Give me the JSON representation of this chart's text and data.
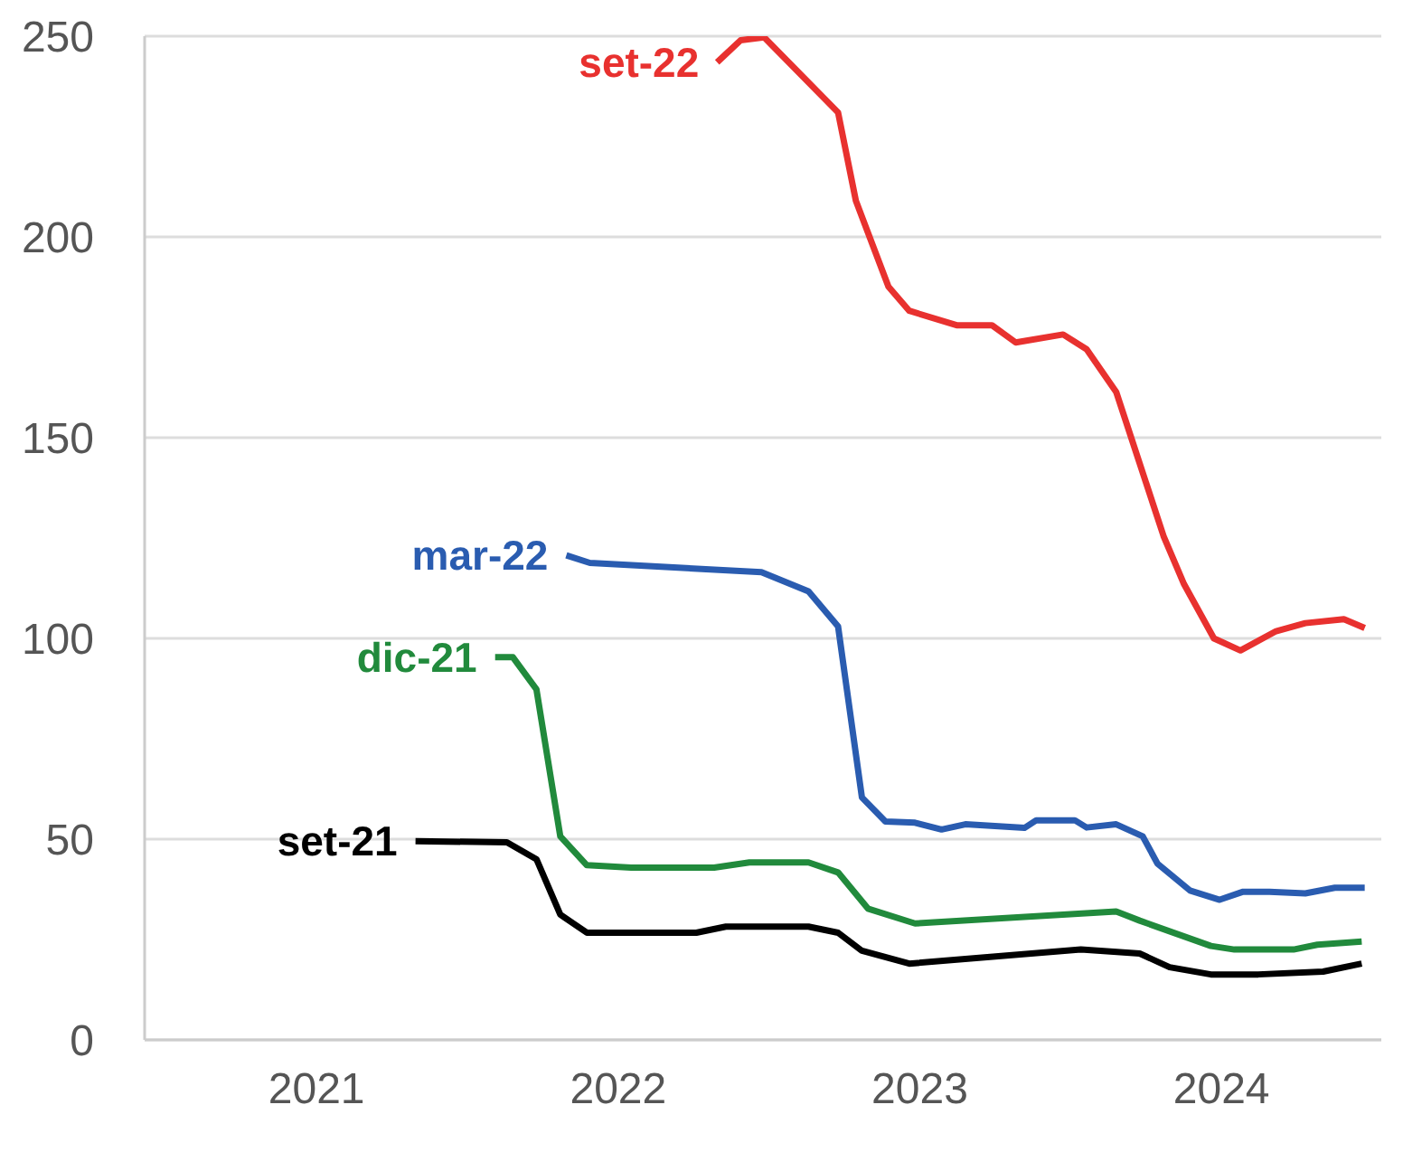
{
  "chart_data": {
    "type": "line",
    "xlim": [
      2020.43,
      2024.53
    ],
    "xticks": [
      2021,
      2022,
      2023,
      2024
    ],
    "ylim": [
      0,
      250
    ],
    "yticks": [
      0,
      50,
      100,
      150,
      200,
      250
    ],
    "grid": "y",
    "line_style": "solid",
    "series": [
      {
        "name": "set-21",
        "color": "#000000",
        "x": [
          2021.328,
          2021.631,
          2021.729,
          2021.808,
          2021.896,
          2022.259,
          2022.357,
          2022.631,
          2022.729,
          2022.808,
          2022.965,
          2023.534,
          2023.729,
          2023.828,
          2023.965,
          2024.122,
          2024.337,
          2024.465
        ],
        "values": [
          49.5,
          49.2,
          45,
          31.2,
          26.7,
          26.7,
          28.2,
          28.2,
          26.7,
          22.2,
          19,
          22.5,
          21.5,
          18.1,
          16.3,
          16.3,
          17,
          19
        ]
      },
      {
        "name": "dic-21",
        "color": "#218a3c",
        "x": [
          2021.592,
          2021.651,
          2021.729,
          2021.808,
          2021.896,
          2022.043,
          2022.318,
          2022.435,
          2022.631,
          2022.729,
          2022.828,
          2022.984,
          2023.651,
          2023.729,
          2023.965,
          2024.043,
          2024.239,
          2024.318,
          2024.465
        ],
        "values": [
          95.3,
          95.3,
          87.3,
          50.7,
          43.5,
          42.9,
          42.9,
          44.2,
          44.2,
          41.7,
          32.7,
          29,
          32,
          29.7,
          23.4,
          22.5,
          22.5,
          23.7,
          24.5
        ]
      },
      {
        "name": "mar-22",
        "color": "#2a5cb0",
        "x": [
          2021.828,
          2021.906,
          2022.475,
          2022.631,
          2022.729,
          2022.808,
          2022.886,
          2022.984,
          2023.072,
          2023.151,
          2023.347,
          2023.386,
          2023.514,
          2023.553,
          2023.651,
          2023.739,
          2023.788,
          2023.896,
          2023.994,
          2024.072,
          2024.159,
          2024.278,
          2024.376,
          2024.475
        ],
        "values": [
          120.7,
          118.8,
          116.5,
          111.7,
          103,
          60.4,
          54.4,
          54.1,
          52.4,
          53.7,
          52.8,
          54.7,
          54.7,
          52.9,
          53.7,
          50.7,
          43.9,
          37.2,
          34.9,
          36.9,
          36.9,
          36.5,
          37.9,
          37.9
        ]
      },
      {
        "name": "set-22",
        "color": "#e8312f",
        "x": [
          2022.328,
          2022.406,
          2022.484,
          2022.729,
          2022.788,
          2022.896,
          2022.965,
          2023.122,
          2023.239,
          2023.318,
          2023.475,
          2023.553,
          2023.651,
          2023.808,
          2023.876,
          2023.975,
          2024.063,
          2024.181,
          2024.278,
          2024.406,
          2024.475
        ],
        "values": [
          243.5,
          249,
          249.7,
          231,
          209,
          187.6,
          181.6,
          178,
          178,
          173.7,
          175.7,
          172,
          161.4,
          125.5,
          113.5,
          100,
          97,
          101.8,
          103.8,
          104.8,
          102.6
        ]
      }
    ]
  }
}
